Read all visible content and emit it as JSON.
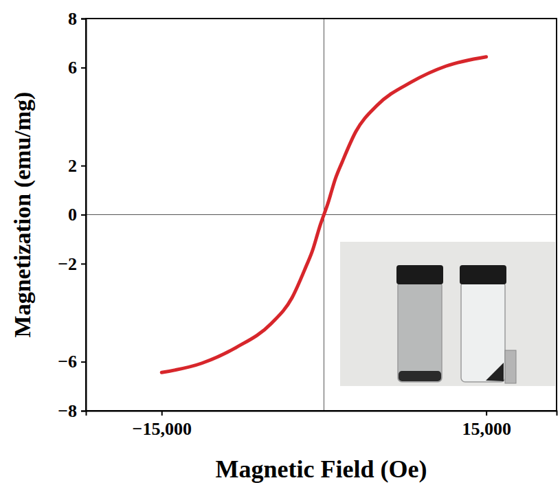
{
  "chart_data": {
    "type": "line",
    "x_label": "Magnetic Field (Oe)",
    "y_label": "Magnetization (emu/mg)",
    "x": [
      -15000,
      -11280,
      -8080,
      -4870,
      -2950,
      -1670,
      -1030,
      -600,
      -385,
      0,
      385,
      600,
      1030,
      1670,
      2950,
      4870,
      8080,
      11280,
      15000
    ],
    "series": [
      {
        "color": "#d7262b",
        "line_style": "solid",
        "values": [
          -6.44,
          -6.06,
          -5.41,
          -4.44,
          -3.39,
          -2.13,
          -1.43,
          -0.8,
          -0.48,
          0,
          0.48,
          0.8,
          1.43,
          2.13,
          3.39,
          4.44,
          5.41,
          6.06,
          6.44
        ]
      }
    ],
    "xlim": [
      -22000,
      21500
    ],
    "ylim": [
      -8,
      8
    ],
    "xticks": [
      {
        "value": -15000,
        "label": "−15,000"
      },
      {
        "value": 15000,
        "label": "15,000"
      }
    ],
    "yticks": [
      {
        "value": -8,
        "label": "−8"
      },
      {
        "value": -6,
        "label": "−6"
      },
      {
        "value": -2,
        "label": "−2"
      },
      0,
      2,
      6,
      8
    ],
    "grid": false
  }
}
